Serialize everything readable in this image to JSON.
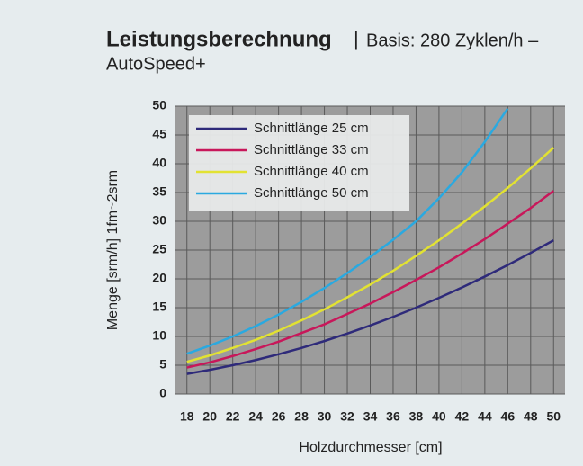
{
  "chart_data": {
    "type": "line",
    "title": "Leistungsberechnung",
    "subtitle": [
      "Basis: 280 Zyklen/h –",
      "AutoSpeed+"
    ],
    "x_label": "Holzdurchmesser [cm]",
    "y_label": "Menge [srm/h] 1fm~2srm",
    "x": [
      18,
      20,
      22,
      24,
      26,
      28,
      30,
      32,
      34,
      36,
      38,
      40,
      42,
      44,
      46,
      48,
      50
    ],
    "series": [
      {
        "name": "Schnittlänge 25 cm",
        "color": "#2e2a7a",
        "values": [
          3.5,
          4.2,
          5.0,
          5.9,
          6.9,
          8.0,
          9.2,
          10.5,
          11.9,
          13.4,
          15.0,
          16.7,
          18.5,
          20.4,
          22.4,
          24.5,
          26.7
        ]
      },
      {
        "name": "Schnittlänge 33 cm",
        "color": "#c8175a",
        "values": [
          4.6,
          5.5,
          6.6,
          7.8,
          9.1,
          10.6,
          12.1,
          13.9,
          15.7,
          17.7,
          19.8,
          22.0,
          24.4,
          26.9,
          29.6,
          32.3,
          35.3
        ]
      },
      {
        "name": "Schnittlänge 40 cm",
        "color": "#e2e232",
        "values": [
          5.6,
          6.7,
          8.0,
          9.4,
          11.0,
          12.8,
          14.7,
          16.8,
          19.0,
          21.4,
          24.0,
          26.7,
          29.6,
          32.6,
          35.8,
          39.2,
          42.8
        ]
      },
      {
        "name": "Schnittlänge 50 cm",
        "color": "#2aa9e0",
        "values": [
          7.0,
          8.4,
          10.0,
          11.8,
          13.8,
          16.0,
          18.4,
          21.0,
          23.8,
          26.8,
          30.0,
          34.0,
          38.5,
          43.8,
          49.6,
          null,
          null
        ]
      }
    ],
    "xlim": [
      17,
      51
    ],
    "ylim": [
      0,
      50
    ],
    "xticks": [
      18,
      20,
      22,
      24,
      26,
      28,
      30,
      32,
      34,
      36,
      38,
      40,
      42,
      44,
      46,
      48,
      50
    ],
    "yticks": [
      0,
      5,
      10,
      15,
      20,
      25,
      30,
      35,
      40,
      45,
      50
    ],
    "grid": true,
    "legend": "upper left"
  }
}
